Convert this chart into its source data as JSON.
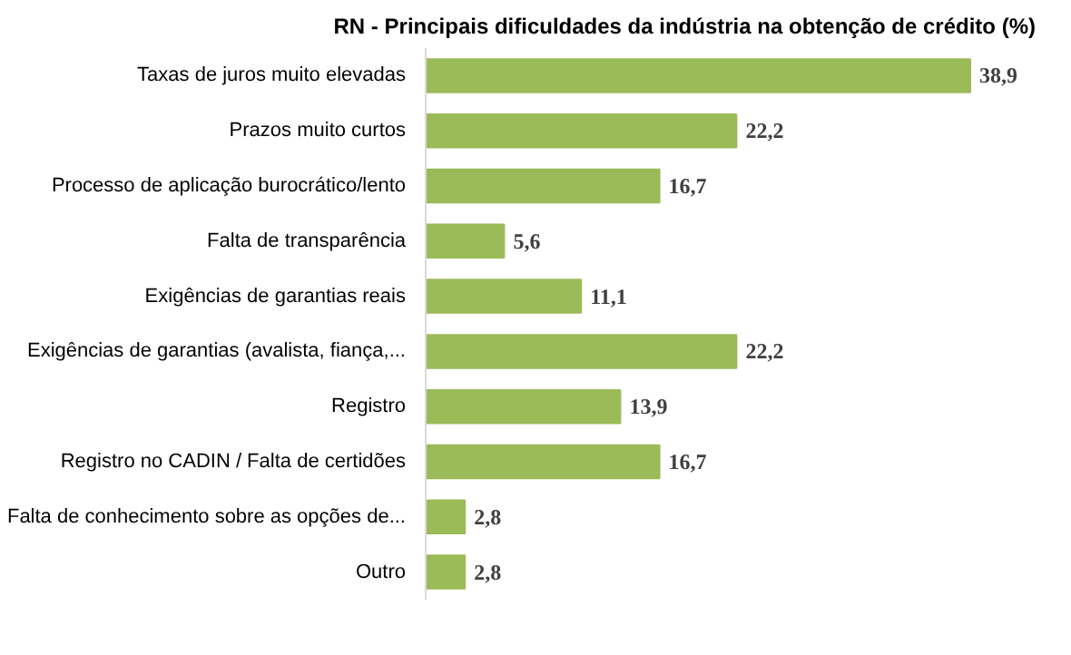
{
  "chart_data": {
    "type": "bar",
    "orientation": "horizontal",
    "title": "RN - Principais dificuldades da indústria na obtenção de crédito (%)",
    "categories": [
      "Taxas de juros muito elevadas",
      "Prazos muito curtos",
      "Processo de aplicação burocrático/lento",
      "Falta de transparência",
      "Exigências de garantias reais",
      "Exigências de garantias (avalista, fiança,...",
      "Registro",
      "Registro no CADIN / Falta de certidões",
      "Falta de conhecimento sobre as opções de...",
      "Outro"
    ],
    "values": [
      38.9,
      22.2,
      16.7,
      5.6,
      11.1,
      22.2,
      13.9,
      16.7,
      2.8,
      2.8
    ],
    "value_labels": [
      "38,9",
      "22,2",
      "16,7",
      "5,6",
      "11,1",
      "22,2",
      "13,9",
      "16,7",
      "2,8",
      "2,8"
    ],
    "color": "#9bbb59",
    "grid": false
  }
}
